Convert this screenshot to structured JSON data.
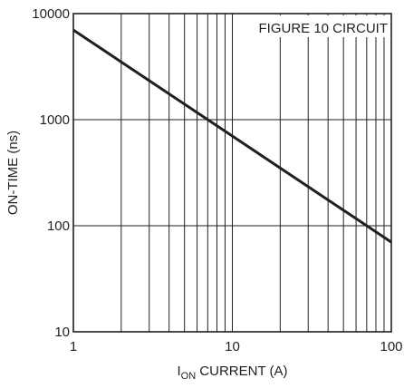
{
  "chart_data": {
    "type": "line",
    "title": "",
    "xlabel_main": "I",
    "xlabel_sub": "ON",
    "xlabel_rest": " CURRENT (A)",
    "ylabel": "ON-TIME (ns)",
    "annotation": "FIGURE 10 CIRCUIT",
    "x_scale": "log",
    "y_scale": "log",
    "xlim": [
      1,
      100
    ],
    "ylim": [
      10,
      10000
    ],
    "x_ticks": [
      {
        "value": 1,
        "label": "1"
      },
      {
        "value": 10,
        "label": "10"
      },
      {
        "value": 100,
        "label": "100"
      }
    ],
    "y_ticks": [
      {
        "value": 10,
        "label": "10"
      },
      {
        "value": 100,
        "label": "100"
      },
      {
        "value": 1000,
        "label": "1000"
      },
      {
        "value": 10000,
        "label": "10000"
      }
    ],
    "grid": true,
    "series": [
      {
        "x": [
          1,
          100
        ],
        "y": [
          7000,
          70
        ]
      }
    ],
    "colors": {
      "line": "#231f20",
      "grid": "#231f20",
      "background": "#ffffff"
    }
  }
}
